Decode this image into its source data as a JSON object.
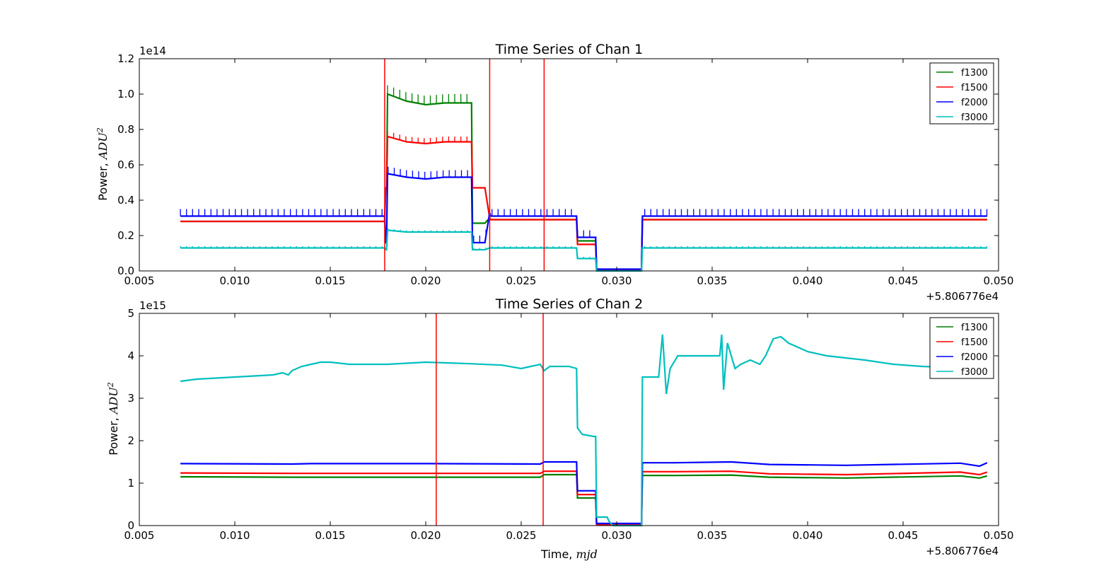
{
  "chart_data": [
    {
      "type": "line",
      "title": "Time Series of Chan 1",
      "ylabel_text": "Power, ",
      "ylabel_math": "ADU",
      "ylabel_sup": "2",
      "xlabel_text": "",
      "xlabel_math": "",
      "x_offset": "+5.806776e4",
      "y_exponent": "1e14",
      "xlim": [
        0.005,
        0.05
      ],
      "ylim": [
        0.0,
        1.2
      ],
      "xticks": [
        0.005,
        0.01,
        0.015,
        0.02,
        0.025,
        0.03,
        0.035,
        0.04,
        0.045,
        0.05
      ],
      "xtick_labels": [
        "0.005",
        "0.010",
        "0.015",
        "0.020",
        "0.025",
        "0.030",
        "0.035",
        "0.040",
        "0.045",
        "0.050"
      ],
      "yticks": [
        0.0,
        0.2,
        0.4,
        0.6,
        0.8,
        1.0,
        1.2
      ],
      "ytick_labels": [
        "0.0",
        "0.2",
        "0.4",
        "0.6",
        "0.8",
        "1.0",
        "1.2"
      ],
      "legend_position": "top-right",
      "vlines": [
        0.01785,
        0.02335,
        0.0262
      ],
      "vline_color": "#ff0000",
      "series": [
        {
          "name": "f1300",
          "color": "#008000",
          "spike": 0.05,
          "spike_start": 0.018,
          "spike_end": 0.0224,
          "x": [
            0.00715,
            0.01785,
            0.0179,
            0.01795,
            0.018,
            0.019,
            0.02,
            0.021,
            0.022,
            0.0224,
            0.02245,
            0.0231,
            0.02335,
            0.0234,
            0.0279,
            0.02795,
            0.0289,
            0.02895,
            0.0313,
            0.03135,
            0.0494
          ],
          "y": [
            0.28,
            0.28,
            0.46,
            0.46,
            1.0,
            0.96,
            0.94,
            0.95,
            0.95,
            0.95,
            0.27,
            0.27,
            0.3,
            0.29,
            0.29,
            0.17,
            0.17,
            0.005,
            0.005,
            0.29,
            0.29
          ]
        },
        {
          "name": "f1500",
          "color": "#ff0000",
          "spike": 0.03,
          "spike_start": 0.018,
          "spike_end": 0.0224,
          "x": [
            0.00715,
            0.01785,
            0.0179,
            0.01795,
            0.018,
            0.019,
            0.02,
            0.021,
            0.022,
            0.0224,
            0.02245,
            0.0231,
            0.02335,
            0.0234,
            0.0279,
            0.02795,
            0.0289,
            0.02895,
            0.0313,
            0.03135,
            0.0494
          ],
          "y": [
            0.28,
            0.28,
            0.47,
            0.47,
            0.76,
            0.73,
            0.72,
            0.73,
            0.73,
            0.73,
            0.47,
            0.47,
            0.3,
            0.29,
            0.29,
            0.15,
            0.15,
            0.005,
            0.005,
            0.29,
            0.29
          ]
        },
        {
          "name": "f2000",
          "color": "#0000ff",
          "spike": 0.04,
          "spike_start": 0.00715,
          "spike_end": 0.0494,
          "x": [
            0.00715,
            0.01785,
            0.0179,
            0.01795,
            0.018,
            0.019,
            0.02,
            0.021,
            0.022,
            0.0224,
            0.02245,
            0.0231,
            0.02335,
            0.0234,
            0.0279,
            0.02795,
            0.0289,
            0.02895,
            0.0313,
            0.03135,
            0.0494
          ],
          "y": [
            0.31,
            0.31,
            0.16,
            0.16,
            0.55,
            0.53,
            0.52,
            0.53,
            0.53,
            0.53,
            0.16,
            0.16,
            0.33,
            0.31,
            0.31,
            0.19,
            0.19,
            0.01,
            0.01,
            0.31,
            0.31
          ]
        },
        {
          "name": "f3000",
          "color": "#00bfbf",
          "spike": 0.01,
          "spike_start": 0.00715,
          "spike_end": 0.0494,
          "x": [
            0.00715,
            0.01785,
            0.0179,
            0.01795,
            0.018,
            0.019,
            0.02,
            0.021,
            0.022,
            0.0224,
            0.02245,
            0.0231,
            0.02335,
            0.0234,
            0.0279,
            0.02795,
            0.0289,
            0.02895,
            0.0313,
            0.03135,
            0.0494
          ],
          "y": [
            0.13,
            0.13,
            0.12,
            0.12,
            0.23,
            0.22,
            0.22,
            0.22,
            0.22,
            0.22,
            0.12,
            0.12,
            0.13,
            0.13,
            0.13,
            0.07,
            0.07,
            0.0,
            0.0,
            0.13,
            0.13
          ]
        }
      ]
    },
    {
      "type": "line",
      "title": "Time Series of Chan 2",
      "ylabel_text": "Power, ",
      "ylabel_math": "ADU",
      "ylabel_sup": "2",
      "xlabel_text": "Time, ",
      "xlabel_math": "mjd",
      "x_offset": "+5.806776e4",
      "y_exponent": "1e15",
      "xlim": [
        0.005,
        0.05
      ],
      "ylim": [
        0,
        5
      ],
      "xticks": [
        0.005,
        0.01,
        0.015,
        0.02,
        0.025,
        0.03,
        0.035,
        0.04,
        0.045,
        0.05
      ],
      "xtick_labels": [
        "0.005",
        "0.010",
        "0.015",
        "0.020",
        "0.025",
        "0.030",
        "0.035",
        "0.040",
        "0.045",
        "0.050"
      ],
      "yticks": [
        0,
        1,
        2,
        3,
        4,
        5
      ],
      "ytick_labels": [
        "0",
        "1",
        "2",
        "3",
        "4",
        "5"
      ],
      "legend_position": "top-right",
      "vlines": [
        0.02055,
        0.02615
      ],
      "vline_color": "#ff0000",
      "series": [
        {
          "name": "f1300",
          "color": "#008000",
          "spike": 0,
          "spike_start": 0,
          "spike_end": 0,
          "x": [
            0.00715,
            0.013,
            0.014,
            0.02,
            0.026,
            0.0262,
            0.0279,
            0.02795,
            0.0289,
            0.02895,
            0.0313,
            0.03135,
            0.033,
            0.036,
            0.038,
            0.042,
            0.048,
            0.049,
            0.0494
          ],
          "y": [
            1.15,
            1.14,
            1.14,
            1.14,
            1.14,
            1.2,
            1.2,
            0.65,
            0.65,
            0.02,
            0.02,
            1.18,
            1.18,
            1.19,
            1.14,
            1.12,
            1.17,
            1.12,
            1.17
          ]
        },
        {
          "name": "f1500",
          "color": "#ff0000",
          "spike": 0,
          "spike_start": 0,
          "spike_end": 0,
          "x": [
            0.00715,
            0.013,
            0.014,
            0.02,
            0.026,
            0.0262,
            0.0279,
            0.02795,
            0.0289,
            0.02895,
            0.0313,
            0.03135,
            0.033,
            0.036,
            0.038,
            0.042,
            0.048,
            0.049,
            0.0494
          ],
          "y": [
            1.24,
            1.23,
            1.23,
            1.23,
            1.23,
            1.28,
            1.28,
            0.73,
            0.73,
            0.02,
            0.02,
            1.27,
            1.27,
            1.28,
            1.22,
            1.2,
            1.26,
            1.2,
            1.26
          ]
        },
        {
          "name": "f2000",
          "color": "#0000ff",
          "spike": 0,
          "spike_start": 0,
          "spike_end": 0,
          "x": [
            0.00715,
            0.013,
            0.014,
            0.02,
            0.026,
            0.0262,
            0.0279,
            0.02795,
            0.0289,
            0.02895,
            0.0313,
            0.03135,
            0.033,
            0.036,
            0.038,
            0.042,
            0.048,
            0.049,
            0.0494
          ],
          "y": [
            1.46,
            1.45,
            1.46,
            1.46,
            1.45,
            1.5,
            1.5,
            0.82,
            0.82,
            0.05,
            0.05,
            1.48,
            1.48,
            1.5,
            1.44,
            1.42,
            1.47,
            1.4,
            1.48
          ]
        },
        {
          "name": "f3000",
          "color": "#00bfbf",
          "spike": 0,
          "spike_start": 0,
          "spike_end": 0,
          "x": [
            0.00715,
            0.008,
            0.01,
            0.012,
            0.0125,
            0.0128,
            0.013,
            0.0135,
            0.014,
            0.0145,
            0.015,
            0.016,
            0.018,
            0.02,
            0.022,
            0.024,
            0.025,
            0.0255,
            0.026,
            0.0262,
            0.0265,
            0.0275,
            0.0279,
            0.02795,
            0.0282,
            0.0288,
            0.0289,
            0.02895,
            0.0295,
            0.0296,
            0.0298,
            0.0312,
            0.0313,
            0.03135,
            0.032,
            0.0322,
            0.0324,
            0.0326,
            0.0328,
            0.0332,
            0.034,
            0.035,
            0.0354,
            0.0355,
            0.0356,
            0.0358,
            0.0362,
            0.0365,
            0.037,
            0.0375,
            0.0378,
            0.0382,
            0.0386,
            0.039,
            0.0395,
            0.04,
            0.041,
            0.042,
            0.043,
            0.0445,
            0.046,
            0.0494
          ],
          "y": [
            3.4,
            3.45,
            3.5,
            3.55,
            3.6,
            3.55,
            3.65,
            3.75,
            3.8,
            3.85,
            3.85,
            3.8,
            3.8,
            3.85,
            3.82,
            3.78,
            3.7,
            3.75,
            3.8,
            3.65,
            3.75,
            3.75,
            3.7,
            2.3,
            2.15,
            2.1,
            2.1,
            0.2,
            0.2,
            0.1,
            0.0,
            0.0,
            0.0,
            3.5,
            3.5,
            3.5,
            4.5,
            3.1,
            3.7,
            4.0,
            4.0,
            4.0,
            4.0,
            4.5,
            3.2,
            4.3,
            3.7,
            3.8,
            3.9,
            3.8,
            4.0,
            4.4,
            4.45,
            4.3,
            4.2,
            4.1,
            4.0,
            3.95,
            3.9,
            3.8,
            3.75,
            3.7
          ]
        }
      ]
    }
  ]
}
